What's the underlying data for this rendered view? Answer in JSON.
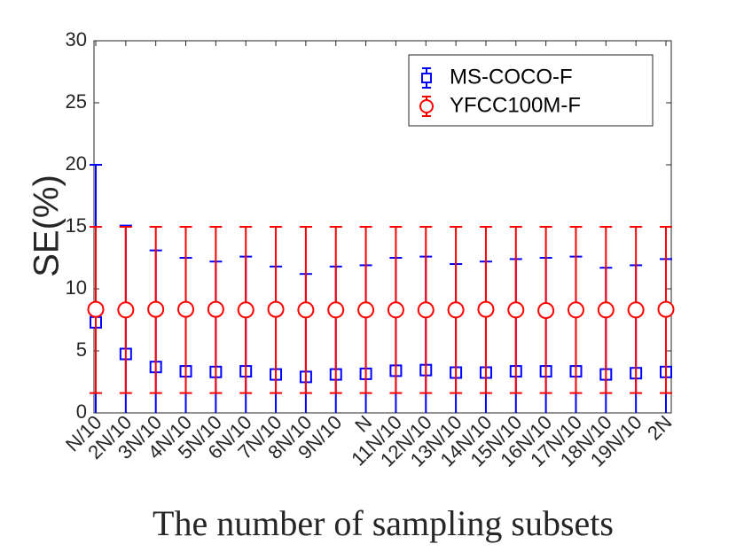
{
  "chart_data": {
    "type": "scatter",
    "title": "",
    "xlabel": "The number of sampling subsets",
    "ylabel": "SE(%)",
    "ylim": [
      0,
      30
    ],
    "yticks": [
      "0",
      "5",
      "10",
      "15",
      "20",
      "25",
      "30"
    ],
    "ytick_values": [
      0,
      5,
      10,
      15,
      20,
      25,
      30
    ],
    "grid": false,
    "legend_position": "top-right",
    "categories": [
      "N/10",
      "2N/10",
      "3N/10",
      "4N/10",
      "5N/10",
      "6N/10",
      "7N/10",
      "8N/10",
      "9N/10",
      "N",
      "11N/10",
      "12N/10",
      "13N/10",
      "14N/10",
      "15N/10",
      "16N/10",
      "17N/10",
      "18N/10",
      "19N/10",
      "2N"
    ],
    "series": [
      {
        "name": "MS-COCO-F",
        "color": "#0000ff",
        "marker": "square",
        "values": [
          7.3,
          4.75,
          3.7,
          3.35,
          3.3,
          3.35,
          3.1,
          2.9,
          3.1,
          3.15,
          3.4,
          3.45,
          3.25,
          3.25,
          3.35,
          3.35,
          3.35,
          3.1,
          3.2,
          3.3
        ],
        "upper": [
          20.0,
          15.1,
          13.1,
          12.5,
          12.2,
          12.6,
          11.8,
          11.2,
          11.8,
          11.9,
          12.5,
          12.6,
          12.0,
          12.2,
          12.4,
          12.5,
          12.6,
          11.7,
          11.9,
          12.4
        ],
        "lower": [
          0,
          0,
          0,
          0,
          0,
          0,
          0,
          0,
          0,
          0,
          0,
          0,
          0,
          0,
          0,
          0,
          0,
          0,
          0,
          0
        ]
      },
      {
        "name": "YFCC100M-F",
        "color": "#ff0000",
        "marker": "circle",
        "values": [
          8.35,
          8.3,
          8.35,
          8.35,
          8.35,
          8.3,
          8.35,
          8.3,
          8.3,
          8.3,
          8.3,
          8.3,
          8.3,
          8.35,
          8.3,
          8.25,
          8.3,
          8.3,
          8.3,
          8.35
        ],
        "upper": [
          15.0,
          15.0,
          15.0,
          15.0,
          15.0,
          15.0,
          15.0,
          15.0,
          15.0,
          15.0,
          15.0,
          15.0,
          15.0,
          15.0,
          15.0,
          15.0,
          15.0,
          15.0,
          15.0,
          15.0
        ],
        "lower": [
          1.6,
          1.6,
          1.6,
          1.6,
          1.6,
          1.6,
          1.6,
          1.6,
          1.6,
          1.6,
          1.6,
          1.6,
          1.6,
          1.6,
          1.6,
          1.6,
          1.6,
          1.6,
          1.6,
          1.6
        ]
      }
    ]
  }
}
